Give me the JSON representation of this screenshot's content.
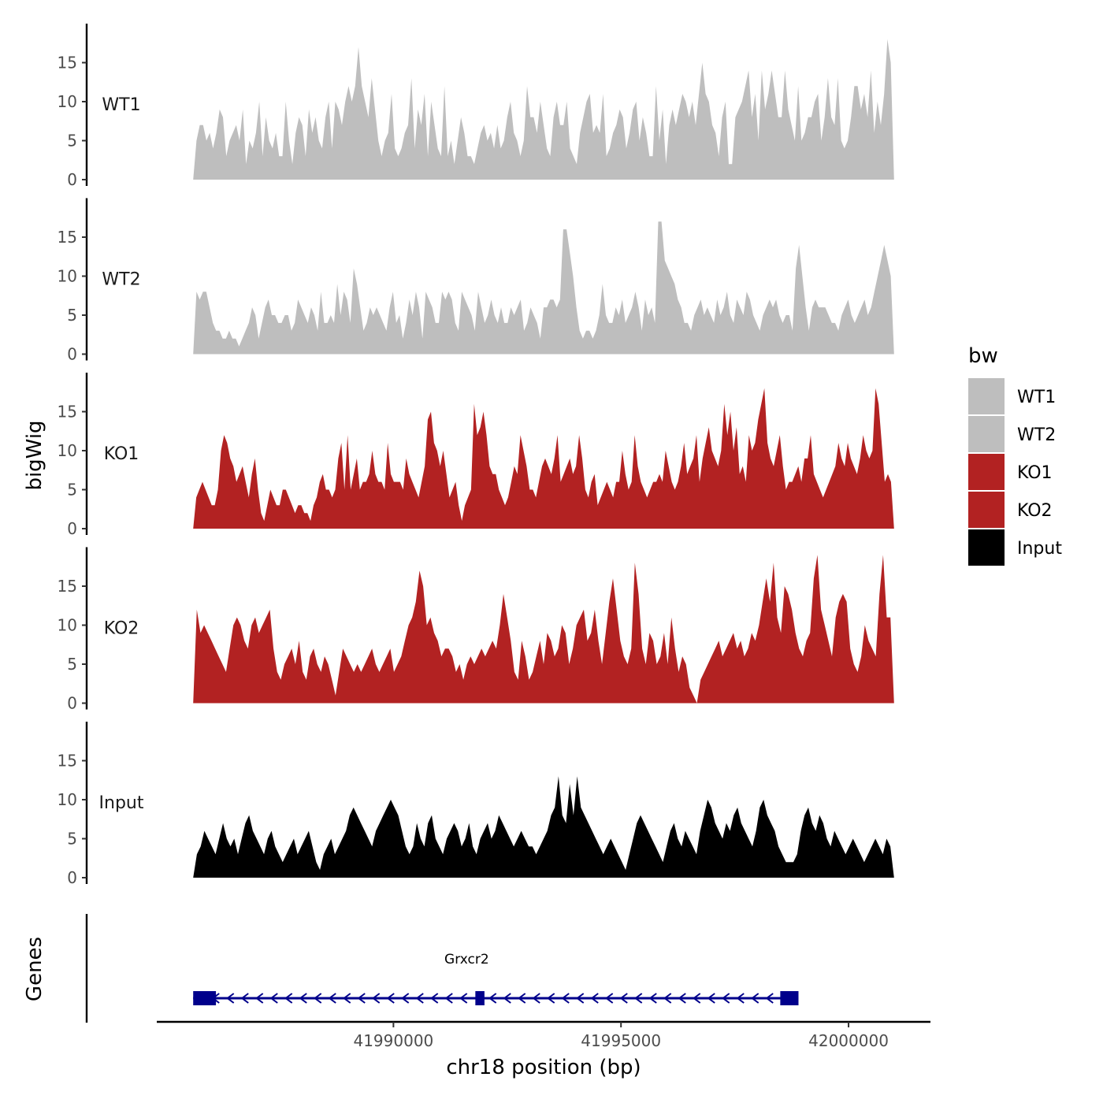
{
  "chart_data": {
    "type": "area",
    "title": "",
    "chromosome": "chr18",
    "xlabel": "chr18 position (bp)",
    "ylabel": "bigWig",
    "genes_label": "Genes",
    "xlim": [
      41984800,
      42001800
    ],
    "x_start": 41985600,
    "x_end": 42001000,
    "xticks": [
      41990000,
      41995000,
      42000000
    ],
    "xtick_labels": [
      "41990000",
      "41995000",
      "42000000"
    ],
    "ylim": [
      0,
      20
    ],
    "yticks": [
      0,
      5,
      10,
      15
    ],
    "ytick_labels": [
      "0",
      "5",
      "10",
      "15"
    ],
    "legend": {
      "title": "bw",
      "position": "right",
      "entries": [
        {
          "label": "WT1",
          "color": "#bebebe"
        },
        {
          "label": "WT2",
          "color": "#bebebe"
        },
        {
          "label": "KO1",
          "color": "#b22222"
        },
        {
          "label": "KO2",
          "color": "#b22222"
        },
        {
          "label": "Input",
          "color": "#000000"
        }
      ]
    },
    "series": [
      {
        "name": "WT1",
        "color": "#bebebe",
        "values": [
          0,
          5,
          7,
          7,
          5,
          6,
          4,
          6,
          9,
          8,
          3,
          5,
          6,
          7,
          5,
          9,
          2,
          5,
          4,
          6,
          10,
          3,
          8,
          5,
          4,
          6,
          3,
          3,
          10,
          5,
          2,
          6,
          8,
          7,
          3,
          9,
          6,
          8,
          5,
          4,
          8,
          10,
          4,
          10,
          9,
          7,
          10,
          12,
          10,
          12,
          17,
          12,
          10,
          8,
          13,
          9,
          5,
          3,
          5,
          6,
          11,
          4,
          3,
          4,
          6,
          7,
          13,
          4,
          9,
          7,
          11,
          3,
          10,
          7,
          4,
          3,
          12,
          3,
          5,
          2,
          5,
          8,
          6,
          3,
          3,
          2,
          4,
          6,
          7,
          5,
          6,
          4,
          7,
          4,
          5,
          8,
          10,
          6,
          5,
          3,
          5,
          12,
          8,
          8,
          6,
          10,
          7,
          4,
          3,
          8,
          10,
          7,
          7,
          10,
          4,
          3,
          2,
          6,
          8,
          10,
          11,
          6,
          7,
          6,
          11,
          3,
          4,
          6,
          7,
          9,
          8,
          4,
          6,
          9,
          10,
          5,
          8,
          6,
          3,
          3,
          12,
          5,
          9,
          2,
          7,
          9,
          7,
          9,
          11,
          10,
          8,
          10,
          7,
          11,
          15,
          11,
          10,
          7,
          6,
          3,
          8,
          10,
          2,
          2,
          8,
          9,
          10,
          12,
          14,
          8,
          11,
          5,
          14,
          9,
          11,
          14,
          11,
          8,
          8,
          14,
          9,
          7,
          5,
          12,
          5,
          6,
          8,
          8,
          10,
          11,
          5,
          8,
          13,
          8,
          7,
          13,
          5,
          4,
          5,
          8,
          12,
          12,
          9,
          11,
          8,
          14,
          6,
          10,
          7,
          11,
          18,
          15,
          0
        ]
      },
      {
        "name": "WT2",
        "color": "#bebebe",
        "values": [
          0,
          8,
          7,
          8,
          8,
          6,
          4,
          3,
          3,
          2,
          2,
          3,
          2,
          2,
          1,
          2,
          3,
          4,
          6,
          5,
          2,
          4,
          6,
          7,
          5,
          5,
          4,
          4,
          5,
          5,
          3,
          4,
          7,
          6,
          5,
          4,
          6,
          5,
          3,
          8,
          4,
          4,
          5,
          4,
          9,
          5,
          8,
          7,
          4,
          11,
          9,
          6,
          3,
          4,
          6,
          5,
          6,
          5,
          4,
          3,
          6,
          8,
          4,
          5,
          2,
          4,
          7,
          5,
          8,
          6,
          2,
          8,
          7,
          6,
          4,
          4,
          8,
          7,
          8,
          7,
          4,
          3,
          8,
          7,
          6,
          5,
          3,
          8,
          6,
          4,
          5,
          7,
          5,
          4,
          6,
          4,
          4,
          6,
          5,
          6,
          7,
          3,
          4,
          6,
          5,
          4,
          2,
          6,
          6,
          7,
          7,
          6,
          7,
          16,
          16,
          13,
          10,
          6,
          3,
          2,
          3,
          3,
          2,
          3,
          5,
          9,
          5,
          4,
          4,
          6,
          5,
          7,
          4,
          5,
          6,
          8,
          6,
          3,
          7,
          5,
          6,
          4,
          17,
          17,
          12,
          11,
          10,
          9,
          7,
          6,
          4,
          4,
          3,
          5,
          6,
          7,
          5,
          6,
          5,
          4,
          7,
          5,
          6,
          8,
          5,
          4,
          7,
          6,
          5,
          8,
          7,
          5,
          4,
          3,
          5,
          6,
          7,
          6,
          7,
          5,
          4,
          5,
          5,
          3,
          11,
          14,
          10,
          6,
          3,
          6,
          7,
          6,
          6,
          6,
          5,
          4,
          4,
          3,
          5,
          6,
          7,
          5,
          4,
          5,
          6,
          7,
          5,
          6,
          8,
          10,
          12,
          14,
          12,
          10,
          0
        ]
      },
      {
        "name": "KO1",
        "color": "#b22222",
        "values": [
          0,
          4,
          5,
          6,
          5,
          4,
          3,
          3,
          5,
          10,
          12,
          11,
          9,
          8,
          6,
          7,
          8,
          6,
          4,
          7,
          9,
          5,
          2,
          1,
          3,
          5,
          4,
          3,
          3,
          5,
          5,
          4,
          3,
          2,
          3,
          3,
          2,
          2,
          1,
          3,
          4,
          6,
          7,
          5,
          5,
          4,
          5,
          9,
          11,
          5,
          12,
          5,
          7,
          9,
          5,
          6,
          6,
          7,
          10,
          7,
          6,
          6,
          5,
          11,
          7,
          6,
          6,
          6,
          5,
          9,
          7,
          6,
          5,
          4,
          6,
          8,
          14,
          15,
          11,
          10,
          8,
          10,
          7,
          4,
          5,
          6,
          3,
          1,
          3,
          4,
          5,
          16,
          12,
          13,
          15,
          12,
          8,
          7,
          7,
          5,
          4,
          3,
          4,
          6,
          8,
          7,
          12,
          10,
          8,
          5,
          5,
          4,
          6,
          8,
          9,
          8,
          7,
          9,
          12,
          6,
          7,
          8,
          9,
          7,
          8,
          12,
          9,
          5,
          4,
          6,
          7,
          3,
          4,
          5,
          6,
          5,
          4,
          6,
          6,
          10,
          7,
          5,
          6,
          12,
          8,
          6,
          5,
          4,
          5,
          6,
          6,
          7,
          6,
          10,
          8,
          6,
          5,
          6,
          8,
          11,
          7,
          8,
          9,
          12,
          6,
          9,
          11,
          13,
          10,
          9,
          8,
          10,
          16,
          12,
          15,
          10,
          13,
          7,
          8,
          6,
          12,
          10,
          11,
          14,
          16,
          18,
          11,
          9,
          8,
          10,
          12,
          8,
          5,
          6,
          6,
          7,
          8,
          6,
          9,
          9,
          12,
          7,
          6,
          5,
          4,
          5,
          6,
          7,
          8,
          11,
          9,
          8,
          11,
          9,
          8,
          7,
          9,
          12,
          10,
          9,
          10,
          18,
          16,
          11,
          6,
          7,
          6,
          0
        ]
      },
      {
        "name": "KO2",
        "color": "#b22222",
        "values": [
          0,
          12,
          9,
          10,
          9,
          8,
          7,
          6,
          5,
          4,
          7,
          10,
          11,
          10,
          8,
          7,
          10,
          11,
          9,
          10,
          11,
          12,
          7,
          4,
          3,
          5,
          6,
          7,
          5,
          8,
          4,
          3,
          6,
          7,
          5,
          4,
          6,
          5,
          3,
          1,
          4,
          7,
          6,
          5,
          4,
          5,
          4,
          5,
          6,
          7,
          5,
          4,
          5,
          6,
          7,
          4,
          5,
          6,
          8,
          10,
          11,
          13,
          17,
          15,
          10,
          11,
          9,
          8,
          6,
          7,
          7,
          6,
          4,
          5,
          3,
          5,
          6,
          5,
          6,
          7,
          6,
          7,
          8,
          7,
          10,
          14,
          11,
          8,
          4,
          3,
          8,
          6,
          3,
          4,
          6,
          8,
          5,
          9,
          8,
          6,
          7,
          10,
          9,
          5,
          7,
          10,
          11,
          12,
          8,
          9,
          12,
          8,
          5,
          9,
          13,
          16,
          12,
          8,
          6,
          5,
          7,
          18,
          14,
          7,
          5,
          9,
          8,
          5,
          6,
          9,
          5,
          11,
          7,
          4,
          6,
          5,
          2,
          1,
          0,
          3,
          4,
          5,
          6,
          7,
          8,
          6,
          7,
          8,
          9,
          7,
          8,
          6,
          7,
          9,
          8,
          10,
          13,
          16,
          13,
          18,
          11,
          9,
          15,
          14,
          12,
          9,
          7,
          6,
          8,
          9,
          16,
          19,
          12,
          10,
          8,
          6,
          11,
          13,
          14,
          13,
          7,
          5,
          4,
          6,
          10,
          8,
          7,
          6,
          14,
          19,
          11,
          11,
          0
        ]
      },
      {
        "name": "Input",
        "color": "#000000",
        "values": [
          0,
          3,
          4,
          6,
          5,
          4,
          3,
          5,
          7,
          5,
          4,
          5,
          3,
          5,
          7,
          8,
          6,
          5,
          4,
          3,
          5,
          6,
          4,
          3,
          2,
          3,
          4,
          5,
          3,
          4,
          5,
          6,
          4,
          2,
          1,
          3,
          4,
          5,
          3,
          4,
          5,
          6,
          8,
          9,
          8,
          7,
          6,
          5,
          4,
          6,
          7,
          8,
          9,
          10,
          9,
          8,
          6,
          4,
          3,
          4,
          7,
          5,
          4,
          7,
          8,
          5,
          4,
          3,
          5,
          6,
          7,
          6,
          4,
          5,
          7,
          4,
          3,
          5,
          6,
          7,
          5,
          6,
          8,
          7,
          6,
          5,
          4,
          5,
          6,
          5,
          4,
          4,
          3,
          4,
          5,
          6,
          8,
          9,
          13,
          8,
          7,
          12,
          8,
          13,
          9,
          8,
          7,
          6,
          5,
          4,
          3,
          4,
          5,
          4,
          3,
          2,
          1,
          3,
          5,
          7,
          8,
          7,
          6,
          5,
          4,
          3,
          2,
          4,
          6,
          7,
          5,
          4,
          6,
          5,
          4,
          3,
          6,
          8,
          10,
          9,
          7,
          6,
          5,
          7,
          6,
          8,
          9,
          7,
          6,
          5,
          4,
          6,
          9,
          10,
          8,
          7,
          6,
          4,
          3,
          2,
          2,
          2,
          3,
          6,
          8,
          9,
          7,
          6,
          8,
          7,
          5,
          4,
          6,
          5,
          4,
          3,
          4,
          5,
          4,
          3,
          2,
          3,
          4,
          5,
          4,
          3,
          5,
          4,
          0
        ]
      }
    ],
    "genes": [
      {
        "name": "Grxcr2",
        "strand": "-",
        "start": 41985600,
        "end": 41998900,
        "exons": [
          [
            41985600,
            41986100
          ],
          [
            41991800,
            41992000
          ],
          [
            41998500,
            41998900
          ]
        ]
      }
    ]
  }
}
